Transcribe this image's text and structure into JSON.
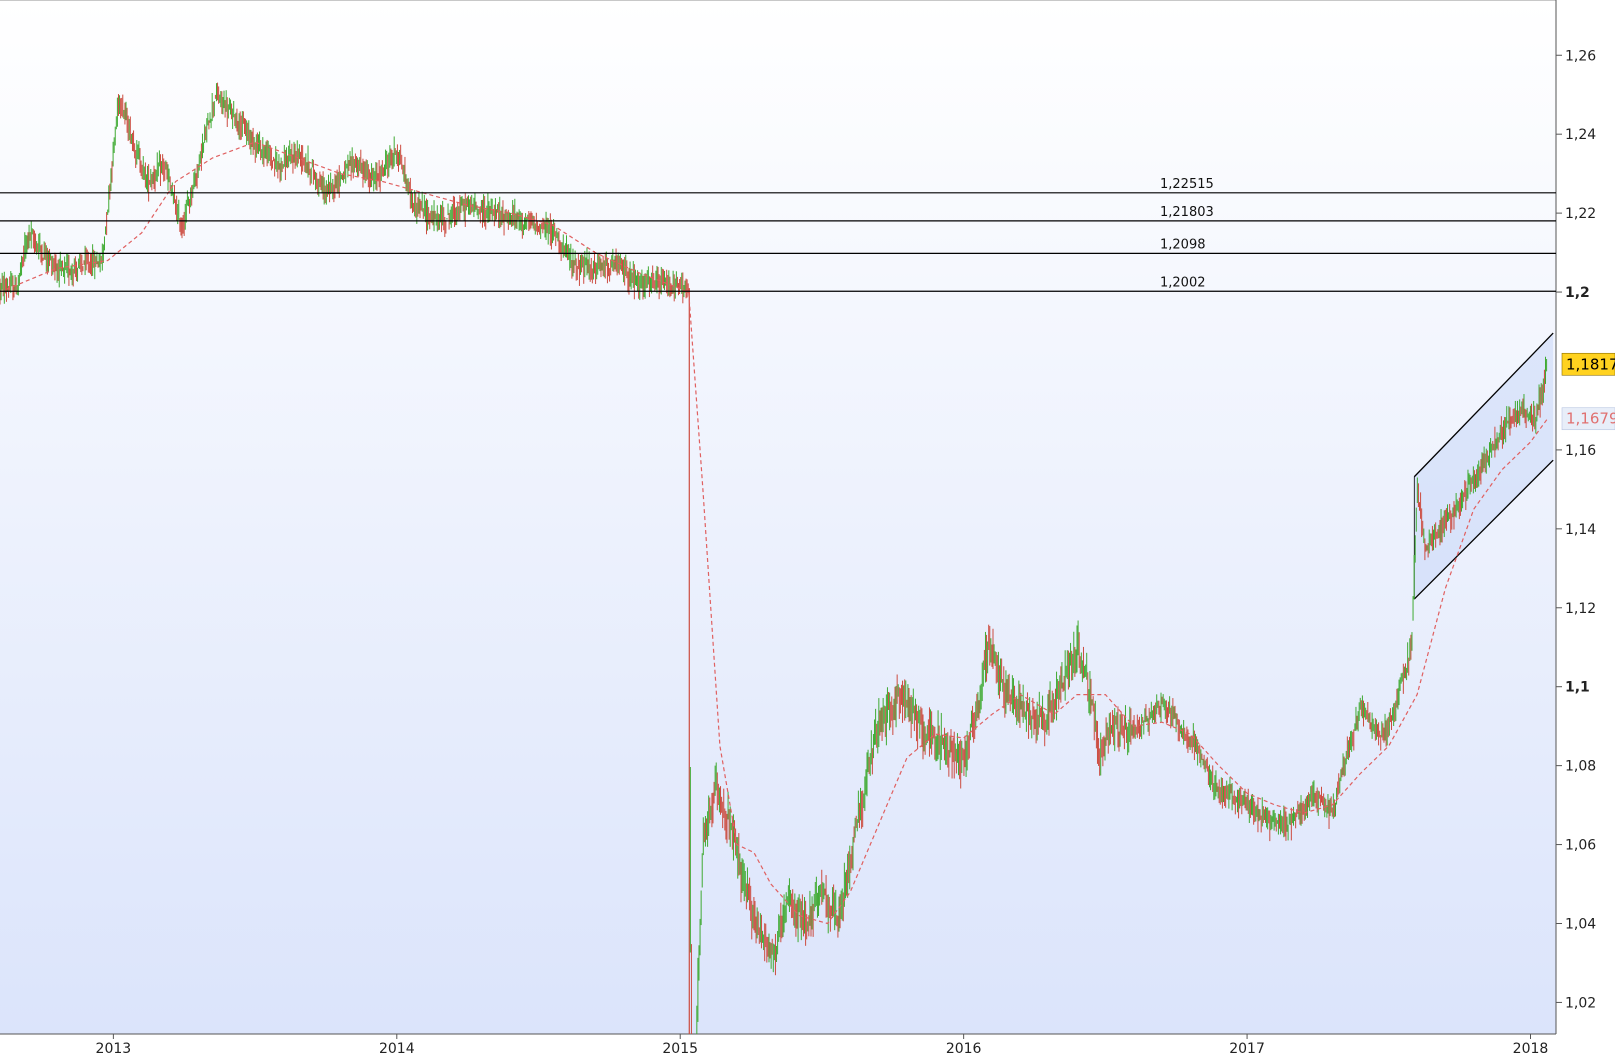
{
  "chart_data": {
    "type": "line",
    "subtype": "candlestick",
    "title": "",
    "xlabel": "",
    "ylabel": "",
    "ylim": [
      1.012,
      1.274
    ],
    "xlim": [
      2012.6,
      2018.09
    ],
    "grid": false,
    "x_ticks": [
      {
        "value": 2013,
        "label": "2013"
      },
      {
        "value": 2014,
        "label": "2014"
      },
      {
        "value": 2015,
        "label": "2015"
      },
      {
        "value": 2016,
        "label": "2016"
      },
      {
        "value": 2017,
        "label": "2017"
      },
      {
        "value": 2018,
        "label": "2018"
      }
    ],
    "y_ticks": [
      {
        "value": 1.02,
        "label": "1,02",
        "bold": false
      },
      {
        "value": 1.04,
        "label": "1,04",
        "bold": false
      },
      {
        "value": 1.06,
        "label": "1,06",
        "bold": false
      },
      {
        "value": 1.08,
        "label": "1,08",
        "bold": false
      },
      {
        "value": 1.1,
        "label": "1,1",
        "bold": true
      },
      {
        "value": 1.12,
        "label": "1,12",
        "bold": false
      },
      {
        "value": 1.14,
        "label": "1,14",
        "bold": false
      },
      {
        "value": 1.16,
        "label": "1,16",
        "bold": false
      },
      {
        "value": 1.2,
        "label": "1,2",
        "bold": true
      },
      {
        "value": 1.22,
        "label": "1,22",
        "bold": false
      },
      {
        "value": 1.24,
        "label": "1,24",
        "bold": false
      },
      {
        "value": 1.26,
        "label": "1,26",
        "bold": false
      }
    ],
    "horizontal_levels": [
      {
        "value": 1.22515,
        "label": "1,22515"
      },
      {
        "value": 1.21803,
        "label": "1,21803"
      },
      {
        "value": 1.2098,
        "label": "1,2098"
      },
      {
        "value": 1.2002,
        "label": "1,2002"
      }
    ],
    "last_price": {
      "value": 1.1817,
      "label": "1,1817"
    },
    "moving_average_last": {
      "value": 1.1679,
      "label": "1,1679"
    },
    "price_path": [
      [
        2012.6,
        1.201
      ],
      [
        2012.66,
        1.201
      ],
      [
        2012.7,
        1.215
      ],
      [
        2012.75,
        1.21
      ],
      [
        2012.82,
        1.205
      ],
      [
        2012.9,
        1.207
      ],
      [
        2012.96,
        1.208
      ],
      [
        2013.02,
        1.25
      ],
      [
        2013.06,
        1.24
      ],
      [
        2013.12,
        1.228
      ],
      [
        2013.18,
        1.232
      ],
      [
        2013.24,
        1.216
      ],
      [
        2013.3,
        1.232
      ],
      [
        2013.36,
        1.25
      ],
      [
        2013.42,
        1.245
      ],
      [
        2013.5,
        1.238
      ],
      [
        2013.58,
        1.232
      ],
      [
        2013.66,
        1.235
      ],
      [
        2013.75,
        1.225
      ],
      [
        2013.85,
        1.233
      ],
      [
        2013.92,
        1.228
      ],
      [
        2014.0,
        1.236
      ],
      [
        2014.06,
        1.222
      ],
      [
        2014.15,
        1.218
      ],
      [
        2014.25,
        1.222
      ],
      [
        2014.33,
        1.22
      ],
      [
        2014.45,
        1.218
      ],
      [
        2014.56,
        1.215
      ],
      [
        2014.62,
        1.207
      ],
      [
        2014.7,
        1.206
      ],
      [
        2014.78,
        1.207
      ],
      [
        2014.85,
        1.202
      ],
      [
        2014.92,
        1.202
      ],
      [
        2015.03,
        1.201
      ],
      [
        2015.04,
        0.98
      ],
      [
        2015.08,
        1.06
      ],
      [
        2015.13,
        1.075
      ],
      [
        2015.18,
        1.063
      ],
      [
        2015.23,
        1.048
      ],
      [
        2015.28,
        1.038
      ],
      [
        2015.33,
        1.032
      ],
      [
        2015.38,
        1.045
      ],
      [
        2015.44,
        1.04
      ],
      [
        2015.5,
        1.048
      ],
      [
        2015.56,
        1.04
      ],
      [
        2015.62,
        1.065
      ],
      [
        2015.7,
        1.09
      ],
      [
        2015.78,
        1.098
      ],
      [
        2015.85,
        1.09
      ],
      [
        2015.93,
        1.085
      ],
      [
        2016.0,
        1.082
      ],
      [
        2016.05,
        1.095
      ],
      [
        2016.09,
        1.112
      ],
      [
        2016.14,
        1.1
      ],
      [
        2016.2,
        1.095
      ],
      [
        2016.26,
        1.092
      ],
      [
        2016.32,
        1.095
      ],
      [
        2016.37,
        1.105
      ],
      [
        2016.4,
        1.11
      ],
      [
        2016.44,
        1.1
      ],
      [
        2016.48,
        1.082
      ],
      [
        2016.52,
        1.09
      ],
      [
        2016.58,
        1.088
      ],
      [
        2016.65,
        1.092
      ],
      [
        2016.7,
        1.096
      ],
      [
        2016.76,
        1.09
      ],
      [
        2016.82,
        1.085
      ],
      [
        2016.88,
        1.075
      ],
      [
        2016.94,
        1.072
      ],
      [
        2017.0,
        1.07
      ],
      [
        2017.08,
        1.066
      ],
      [
        2017.14,
        1.065
      ],
      [
        2017.2,
        1.07
      ],
      [
        2017.25,
        1.072
      ],
      [
        2017.3,
        1.068
      ],
      [
        2017.36,
        1.085
      ],
      [
        2017.4,
        1.095
      ],
      [
        2017.46,
        1.088
      ],
      [
        2017.5,
        1.09
      ],
      [
        2017.55,
        1.102
      ],
      [
        2017.58,
        1.11
      ],
      [
        2017.6,
        1.15
      ],
      [
        2017.63,
        1.135
      ],
      [
        2017.68,
        1.14
      ],
      [
        2017.74,
        1.145
      ],
      [
        2017.78,
        1.15
      ],
      [
        2017.84,
        1.158
      ],
      [
        2017.9,
        1.165
      ],
      [
        2017.96,
        1.17
      ],
      [
        2018.02,
        1.168
      ],
      [
        2018.06,
        1.1817
      ]
    ],
    "moving_average_path": [
      [
        2012.6,
        1.2
      ],
      [
        2012.8,
        1.206
      ],
      [
        2012.98,
        1.208
      ],
      [
        2013.1,
        1.215
      ],
      [
        2013.22,
        1.228
      ],
      [
        2013.35,
        1.234
      ],
      [
        2013.5,
        1.238
      ],
      [
        2013.65,
        1.234
      ],
      [
        2013.8,
        1.23
      ],
      [
        2013.95,
        1.228
      ],
      [
        2014.1,
        1.225
      ],
      [
        2014.25,
        1.222
      ],
      [
        2014.4,
        1.22
      ],
      [
        2014.55,
        1.217
      ],
      [
        2014.7,
        1.21
      ],
      [
        2014.85,
        1.205
      ],
      [
        2015.03,
        1.2
      ],
      [
        2015.08,
        1.15
      ],
      [
        2015.14,
        1.085
      ],
      [
        2015.2,
        1.06
      ],
      [
        2015.26,
        1.058
      ],
      [
        2015.32,
        1.05
      ],
      [
        2015.42,
        1.042
      ],
      [
        2015.52,
        1.04
      ],
      [
        2015.6,
        1.048
      ],
      [
        2015.7,
        1.065
      ],
      [
        2015.8,
        1.082
      ],
      [
        2015.9,
        1.088
      ],
      [
        2016.0,
        1.087
      ],
      [
        2016.1,
        1.093
      ],
      [
        2016.2,
        1.098
      ],
      [
        2016.32,
        1.093
      ],
      [
        2016.4,
        1.098
      ],
      [
        2016.5,
        1.098
      ],
      [
        2016.6,
        1.09
      ],
      [
        2016.7,
        1.091
      ],
      [
        2016.8,
        1.088
      ],
      [
        2016.9,
        1.08
      ],
      [
        2017.0,
        1.073
      ],
      [
        2017.1,
        1.07
      ],
      [
        2017.2,
        1.068
      ],
      [
        2017.3,
        1.07
      ],
      [
        2017.4,
        1.078
      ],
      [
        2017.5,
        1.085
      ],
      [
        2017.6,
        1.098
      ],
      [
        2017.7,
        1.125
      ],
      [
        2017.8,
        1.145
      ],
      [
        2017.9,
        1.155
      ],
      [
        2018.0,
        1.162
      ],
      [
        2018.06,
        1.1679
      ]
    ],
    "channel": {
      "upper": [
        [
          2017.59,
          1.1532
        ],
        [
          2018.08,
          1.1896
        ]
      ],
      "lower": [
        [
          2017.59,
          1.1222
        ],
        [
          2018.08,
          1.1574
        ]
      ]
    }
  },
  "colors": {
    "bg_top": "#ffffff",
    "bg_bottom": "#dbe4fb",
    "up_candle": "#3faa32",
    "down_candle": "#cc4b3f",
    "ma_line": "#e06060",
    "levels": "#000000",
    "last_badge_bg": "#ffd21f",
    "ma_badge_bg": "#e8eef9",
    "ma_badge_text": "#e07070",
    "channel_fill": "#c9d7f7"
  }
}
